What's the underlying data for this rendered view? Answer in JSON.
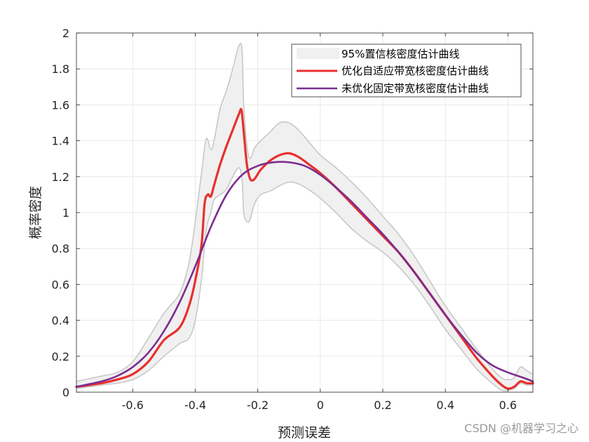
{
  "chart_data": {
    "type": "line",
    "xlim": [
      -0.78,
      0.68
    ],
    "ylim": [
      0,
      2
    ],
    "grid": true,
    "legend_position": "top-right",
    "xticks": [
      -0.6,
      -0.4,
      -0.2,
      0,
      0.2,
      0.4,
      0.6
    ],
    "xtick_labels": [
      "-0.6",
      "-0.4",
      "-0.2",
      "0",
      "0.2",
      "0.4",
      "0.6"
    ],
    "yticks": [
      0,
      0.2,
      0.4,
      0.6,
      0.8,
      1,
      1.2,
      1.4,
      1.6,
      1.8,
      2
    ],
    "ytick_labels": [
      "0",
      "0.2",
      "0.4",
      "0.6",
      "0.8",
      "1",
      "1.2",
      "1.4",
      "1.6",
      "1.8",
      "2"
    ],
    "xlabel": "预测误差",
    "ylabel": "概率密度",
    "band": {
      "name": "95%置信核密度估计曲线",
      "color": "#f0f0f0",
      "edge_color": "#c8c8c8",
      "x": [
        -0.78,
        -0.7,
        -0.65,
        -0.6,
        -0.55,
        -0.5,
        -0.45,
        -0.42,
        -0.4,
        -0.38,
        -0.365,
        -0.35,
        -0.34,
        -0.32,
        -0.3,
        -0.28,
        -0.26,
        -0.25,
        -0.245,
        -0.235,
        -0.225,
        -0.21,
        -0.19,
        -0.16,
        -0.13,
        -0.1,
        -0.07,
        -0.03,
        0,
        0.05,
        0.1,
        0.15,
        0.2,
        0.25,
        0.3,
        0.35,
        0.4,
        0.45,
        0.5,
        0.55,
        0.58,
        0.6,
        0.62,
        0.64,
        0.66,
        0.68
      ],
      "upper": [
        0.06,
        0.09,
        0.11,
        0.17,
        0.3,
        0.44,
        0.55,
        0.72,
        0.95,
        1.22,
        1.41,
        1.35,
        1.4,
        1.58,
        1.68,
        1.8,
        1.93,
        1.9,
        1.6,
        1.38,
        1.3,
        1.36,
        1.4,
        1.45,
        1.5,
        1.5,
        1.46,
        1.38,
        1.32,
        1.25,
        1.17,
        1.08,
        0.98,
        0.88,
        0.76,
        0.62,
        0.48,
        0.36,
        0.24,
        0.13,
        0.08,
        0.07,
        0.08,
        0.14,
        0.12,
        0.1
      ],
      "lower": [
        0.02,
        0.04,
        0.05,
        0.07,
        0.12,
        0.2,
        0.27,
        0.3,
        0.4,
        0.63,
        0.9,
        1.0,
        1.07,
        1.1,
        1.13,
        1.2,
        1.25,
        1.18,
        1.0,
        0.95,
        0.96,
        1.05,
        1.1,
        1.12,
        1.15,
        1.17,
        1.16,
        1.12,
        1.08,
        1.0,
        0.91,
        0.84,
        0.78,
        0.7,
        0.6,
        0.48,
        0.35,
        0.24,
        0.13,
        0.05,
        0.01,
        0.01,
        0.02,
        0.05,
        0.04,
        0.04
      ]
    },
    "series": [
      {
        "name": "优化自适应带宽核密度估计曲线",
        "color": "#e8302e",
        "x": [
          -0.78,
          -0.7,
          -0.65,
          -0.6,
          -0.55,
          -0.5,
          -0.45,
          -0.42,
          -0.4,
          -0.38,
          -0.37,
          -0.36,
          -0.35,
          -0.34,
          -0.32,
          -0.3,
          -0.28,
          -0.26,
          -0.252,
          -0.245,
          -0.235,
          -0.225,
          -0.215,
          -0.205,
          -0.19,
          -0.16,
          -0.13,
          -0.1,
          -0.07,
          -0.03,
          0,
          0.05,
          0.1,
          0.15,
          0.2,
          0.25,
          0.3,
          0.35,
          0.4,
          0.45,
          0.5,
          0.55,
          0.58,
          0.6,
          0.62,
          0.64,
          0.66,
          0.68
        ],
        "values": [
          0.03,
          0.05,
          0.07,
          0.1,
          0.17,
          0.29,
          0.36,
          0.48,
          0.62,
          0.82,
          1.05,
          1.1,
          1.09,
          1.15,
          1.27,
          1.37,
          1.46,
          1.55,
          1.57,
          1.45,
          1.27,
          1.19,
          1.18,
          1.2,
          1.24,
          1.29,
          1.32,
          1.33,
          1.31,
          1.26,
          1.22,
          1.14,
          1.05,
          0.96,
          0.87,
          0.78,
          0.67,
          0.55,
          0.43,
          0.31,
          0.19,
          0.09,
          0.04,
          0.02,
          0.03,
          0.06,
          0.05,
          0.05
        ]
      },
      {
        "name": "未优化固定带宽核密度估计曲线",
        "color": "#7b2d8e",
        "x": [
          -0.78,
          -0.7,
          -0.65,
          -0.6,
          -0.55,
          -0.5,
          -0.45,
          -0.4,
          -0.35,
          -0.3,
          -0.25,
          -0.2,
          -0.15,
          -0.1,
          -0.05,
          0,
          0.05,
          0.1,
          0.15,
          0.2,
          0.25,
          0.3,
          0.35,
          0.4,
          0.45,
          0.5,
          0.55,
          0.6,
          0.65,
          0.68
        ],
        "values": [
          0.03,
          0.06,
          0.09,
          0.14,
          0.22,
          0.34,
          0.5,
          0.7,
          0.92,
          1.1,
          1.21,
          1.26,
          1.28,
          1.28,
          1.26,
          1.21,
          1.14,
          1.06,
          0.97,
          0.88,
          0.78,
          0.67,
          0.55,
          0.43,
          0.32,
          0.22,
          0.15,
          0.11,
          0.08,
          0.06
        ]
      }
    ]
  },
  "watermark": "CSDN @机器学习之心"
}
